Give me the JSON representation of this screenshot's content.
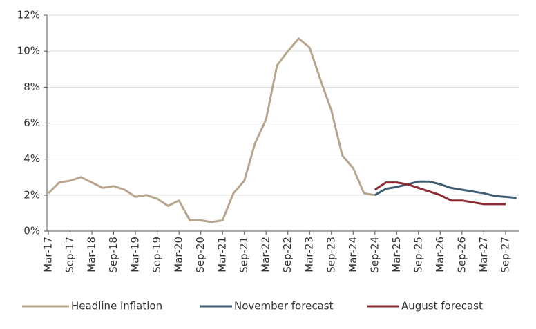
{
  "chart_data": {
    "type": "line",
    "categories": [
      "Mar-17",
      null,
      "Sep-17",
      null,
      "Mar-18",
      null,
      "Sep-18",
      null,
      "Mar-19",
      null,
      "Sep-19",
      null,
      "Mar-20",
      null,
      "Sep-20",
      null,
      "Mar-21",
      null,
      "Sep-21",
      null,
      "Mar-22",
      null,
      "Sep-22",
      null,
      "Mar-23",
      null,
      "Sep-23",
      null,
      "Mar-24",
      null,
      "Sep-24",
      null,
      "Mar-25",
      null,
      "Sep-25",
      null,
      "Mar-26",
      null,
      "Sep-26",
      null,
      "Mar-27",
      null,
      "Sep-27",
      null
    ],
    "series": [
      {
        "name": "Headline inflation",
        "color": "#b8a58d",
        "values": [
          2.1,
          2.7,
          2.8,
          3.0,
          2.7,
          2.4,
          2.5,
          2.3,
          1.9,
          2.0,
          1.8,
          1.4,
          1.7,
          0.6,
          0.6,
          0.5,
          0.6,
          2.1,
          2.8,
          4.9,
          6.2,
          9.2,
          10.0,
          10.7,
          10.2,
          8.4,
          6.7,
          4.2,
          3.5,
          2.1,
          2.0,
          null,
          null,
          null,
          null,
          null,
          null,
          null,
          null,
          null,
          null,
          null,
          null,
          null
        ]
      },
      {
        "name": "November forecast",
        "color": "#3f5e72",
        "values": [
          null,
          null,
          null,
          null,
          null,
          null,
          null,
          null,
          null,
          null,
          null,
          null,
          null,
          null,
          null,
          null,
          null,
          null,
          null,
          null,
          null,
          null,
          null,
          null,
          null,
          null,
          null,
          null,
          null,
          null,
          2.0,
          2.35,
          2.45,
          2.6,
          2.75,
          2.75,
          2.6,
          2.4,
          2.3,
          2.2,
          2.1,
          1.95,
          1.9,
          1.85
        ]
      },
      {
        "name": "August forecast",
        "color": "#8a2b33",
        "values": [
          null,
          null,
          null,
          null,
          null,
          null,
          null,
          null,
          null,
          null,
          null,
          null,
          null,
          null,
          null,
          null,
          null,
          null,
          null,
          null,
          null,
          null,
          null,
          null,
          null,
          null,
          null,
          null,
          null,
          null,
          2.3,
          2.7,
          2.7,
          2.6,
          2.4,
          2.2,
          2.0,
          1.7,
          1.7,
          1.6,
          1.5,
          1.5,
          1.5,
          null
        ]
      }
    ],
    "ylim": [
      0,
      12
    ],
    "yticks": [
      {
        "value": 0,
        "label": "0%"
      },
      {
        "value": 2,
        "label": "2%"
      },
      {
        "value": 4,
        "label": "4%"
      },
      {
        "value": 6,
        "label": "6%"
      },
      {
        "value": 8,
        "label": "8%"
      },
      {
        "value": 10,
        "label": "10%"
      },
      {
        "value": 12,
        "label": "12%"
      }
    ],
    "grid": true
  }
}
